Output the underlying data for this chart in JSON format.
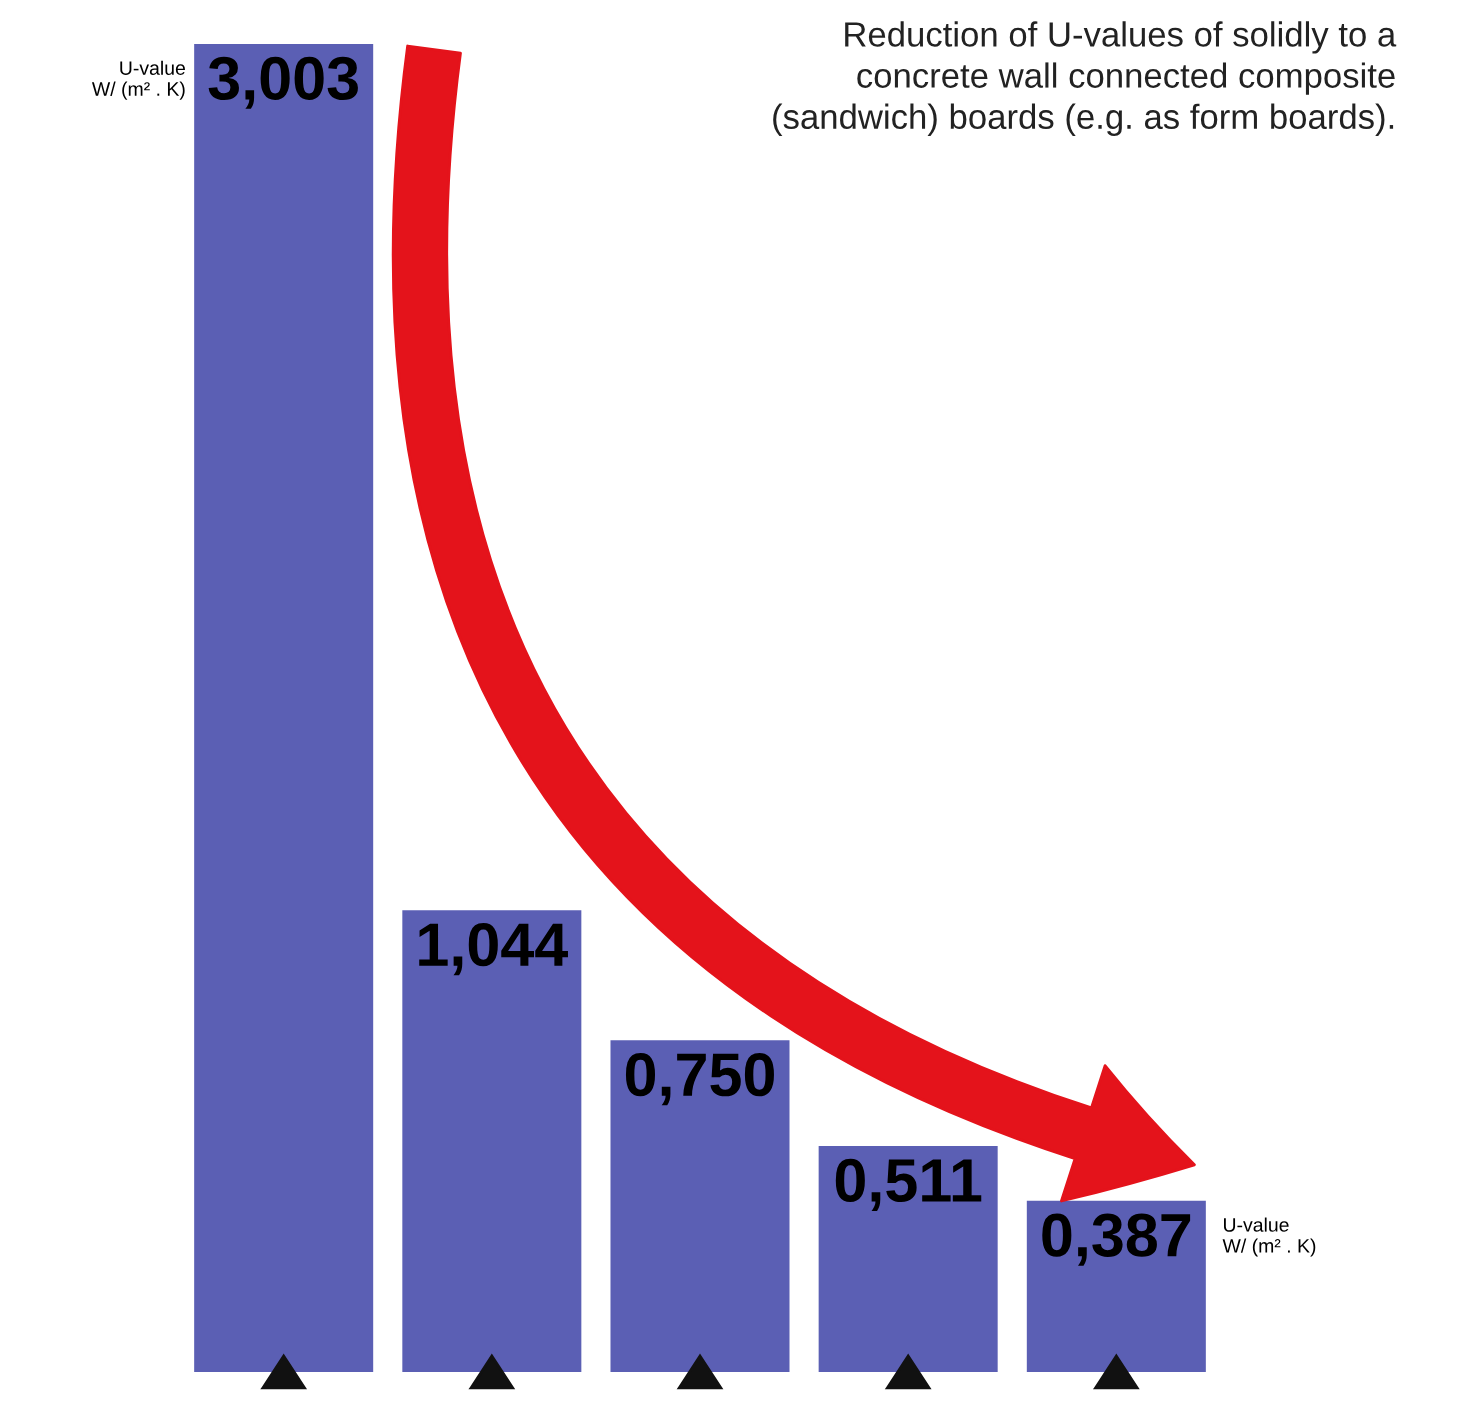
{
  "chart_data": {
    "type": "bar",
    "title": "Reduction of U-values of solidly to a\nconcrete wall connected composite\n(sandwich) boards (e.g. as form boards).",
    "categories": [
      null,
      null,
      null,
      null,
      null
    ],
    "values": [
      3.003,
      1.044,
      0.75,
      0.511,
      0.387
    ],
    "value_labels": [
      "3,003",
      "1,044",
      "0,750",
      "0,511",
      "0,387"
    ],
    "color": "#5b5fb4",
    "annotations": [
      "U-value\nW/ (m² . K)",
      "U-value\nW/ (m² . K)"
    ]
  }
}
